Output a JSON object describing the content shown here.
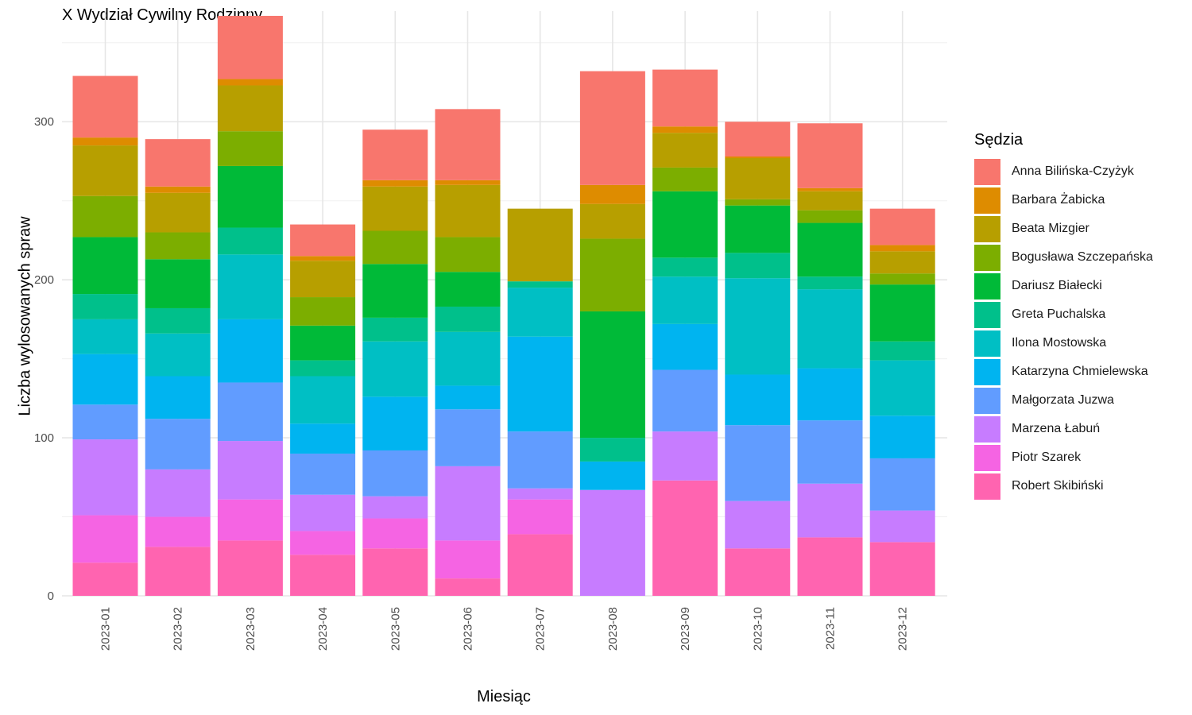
{
  "chart_data": {
    "type": "bar",
    "stacked": true,
    "title": "X Wydział Cywilny Rodzinny",
    "xlabel": "Miesiąc",
    "ylabel": "Liczba wylosowanych spraw",
    "ylim": [
      0,
      370
    ],
    "yticks": [
      0,
      100,
      200,
      300
    ],
    "grid": true,
    "legend_title": "Sędzia",
    "legend_position": "right",
    "categories": [
      "2023-01",
      "2023-02",
      "2023-03",
      "2023-04",
      "2023-05",
      "2023-06",
      "2023-07",
      "2023-08",
      "2023-09",
      "2023-10",
      "2023-11",
      "2023-12"
    ],
    "series": [
      {
        "name": "Anna Bilińska-Czyżyk",
        "color": "#F8766D",
        "values": [
          39,
          30,
          40,
          20,
          32,
          45,
          0,
          72,
          36,
          22,
          41,
          23
        ]
      },
      {
        "name": "Barbara Żabicka",
        "color": "#DE8C00",
        "values": [
          5,
          4,
          4,
          3,
          4,
          3,
          0,
          12,
          4,
          1,
          2,
          4
        ]
      },
      {
        "name": "Beata Mizgier",
        "color": "#B79F00",
        "values": [
          32,
          25,
          29,
          23,
          28,
          33,
          46,
          22,
          22,
          26,
          12,
          14
        ]
      },
      {
        "name": "Bogusława Szczepańska",
        "color": "#7CAE00",
        "values": [
          26,
          17,
          22,
          18,
          21,
          22,
          0,
          46,
          15,
          4,
          8,
          7
        ]
      },
      {
        "name": "Dariusz Białecki",
        "color": "#00BA38",
        "values": [
          36,
          31,
          39,
          22,
          34,
          22,
          0,
          80,
          42,
          30,
          34,
          36
        ]
      },
      {
        "name": "Greta Puchalska",
        "color": "#00C08B",
        "values": [
          16,
          16,
          17,
          10,
          15,
          16,
          4,
          15,
          12,
          16,
          8,
          12
        ]
      },
      {
        "name": "Ilona Mostowska",
        "color": "#00BFC4",
        "values": [
          22,
          27,
          41,
          30,
          35,
          34,
          31,
          0,
          30,
          61,
          50,
          35
        ]
      },
      {
        "name": "Katarzyna Chmielewska",
        "color": "#00B4F0",
        "values": [
          32,
          27,
          40,
          19,
          34,
          15,
          60,
          18,
          29,
          32,
          33,
          27
        ]
      },
      {
        "name": "Małgorzata Juzwa",
        "color": "#619CFF",
        "values": [
          22,
          32,
          37,
          26,
          29,
          36,
          36,
          0,
          39,
          48,
          40,
          33
        ]
      },
      {
        "name": "Marzena Łabuń",
        "color": "#C77CFF",
        "values": [
          48,
          30,
          37,
          23,
          14,
          47,
          7,
          67,
          31,
          30,
          34,
          20
        ]
      },
      {
        "name": "Piotr Szarek",
        "color": "#F564E3",
        "values": [
          30,
          19,
          26,
          15,
          19,
          24,
          22,
          0,
          0,
          0,
          0,
          0
        ]
      },
      {
        "name": "Robert Skibiński",
        "color": "#FF64B0",
        "values": [
          21,
          31,
          35,
          26,
          30,
          11,
          39,
          0,
          73,
          30,
          37,
          34
        ]
      }
    ]
  }
}
